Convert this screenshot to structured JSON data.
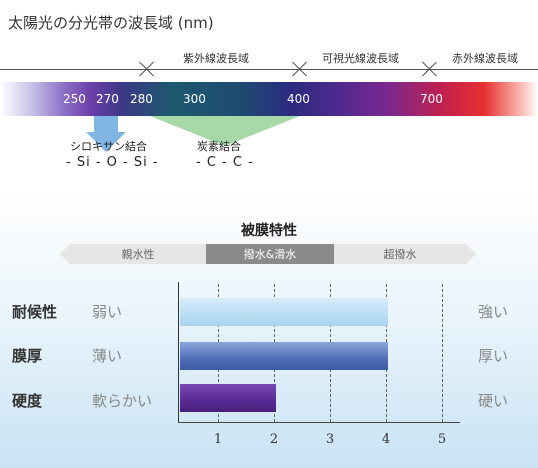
{
  "title": "太陽光の分光帯の波長域 (nm)",
  "regions": [
    "紫外線波長域",
    "可視光線波長域",
    "赤外線波長域"
  ],
  "wavelengths": [
    "250",
    "270",
    "280",
    "300",
    "400",
    "700"
  ],
  "bonds": [
    {
      "name": "シロキサン結合",
      "formula": "- Si - O - Si -",
      "color": "#7fb6e3"
    },
    {
      "name": "炭素結合",
      "formula": "- C - C -",
      "color": "#a6d8a8"
    }
  ],
  "film": {
    "title": "被膜特性",
    "scale": [
      "親水性",
      "撥水&滑水",
      "超撥水"
    ],
    "rows": [
      {
        "label": "耐候性",
        "weak": "弱い",
        "strong": "強い",
        "value": 4
      },
      {
        "label": "膜厚",
        "weak": "薄い",
        "strong": "厚い",
        "value": 4
      },
      {
        "label": "硬度",
        "weak": "軟らかい",
        "strong": "硬い",
        "value": 2
      }
    ],
    "ticks": [
      "1",
      "2",
      "3",
      "4",
      "5"
    ],
    "colors": {
      "bar1": "#a8d4f0",
      "bar2": "#4f6fb8",
      "bar3": "#5a2a94"
    }
  }
}
